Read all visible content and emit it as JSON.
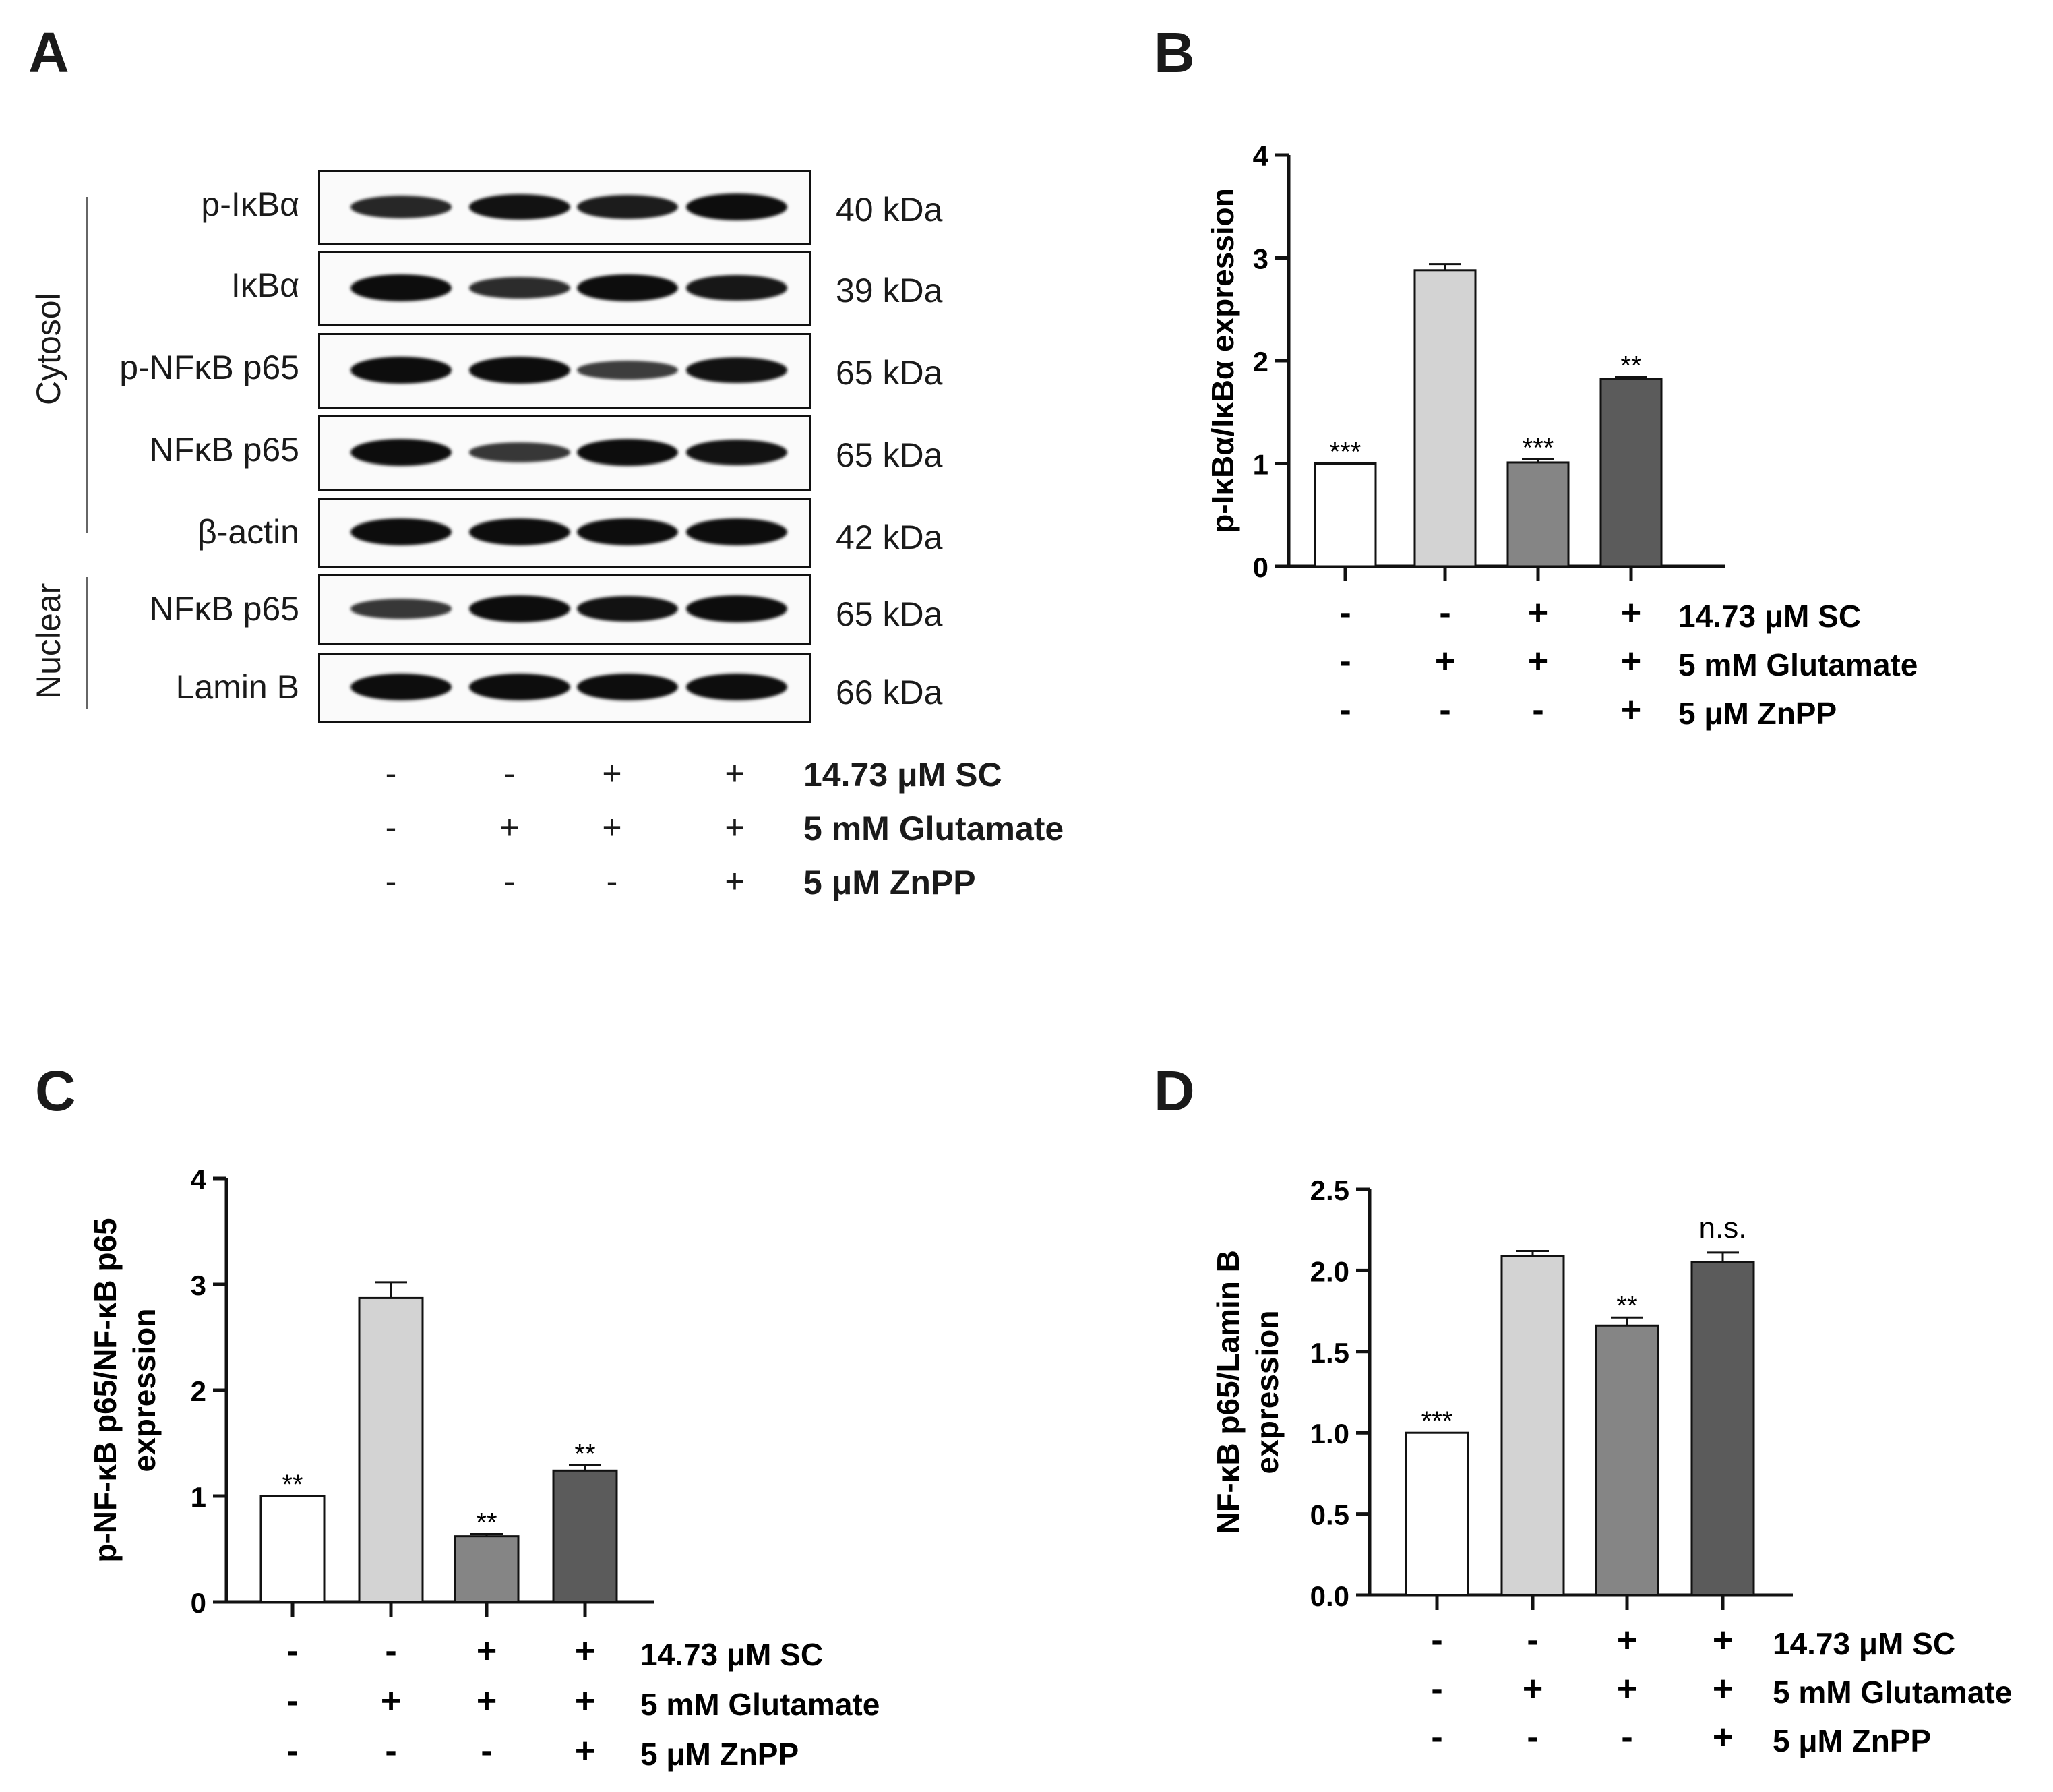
{
  "panels": {
    "A": "A",
    "B": "B",
    "C": "C",
    "D": "D"
  },
  "blot": {
    "rows": [
      {
        "label": "p-IκBα",
        "kda": "40 kDa",
        "intensities": [
          0.75,
          0.95,
          0.85,
          1.0
        ]
      },
      {
        "label": "IκBα",
        "kda": "39 kDa",
        "intensities": [
          1.0,
          0.7,
          1.0,
          0.9
        ]
      },
      {
        "label": "p-NFκB p65",
        "kda": "65 kDa",
        "intensities": [
          1.0,
          1.0,
          0.55,
          0.95
        ]
      },
      {
        "label": "NFκB p65",
        "kda": "65 kDa",
        "intensities": [
          1.0,
          0.6,
          1.0,
          0.95
        ]
      },
      {
        "label": "β-actin",
        "kda": "42 kDa",
        "intensities": [
          1.0,
          1.0,
          1.0,
          1.0
        ]
      },
      {
        "label": "NFκB p65",
        "kda": "65 kDa",
        "intensities": [
          0.6,
          1.0,
          0.95,
          1.0
        ]
      },
      {
        "label": "Lamin B",
        "kda": "66 kDa",
        "intensities": [
          1.0,
          1.0,
          1.0,
          1.0
        ]
      }
    ],
    "groups": {
      "cytosol": "Cytosol",
      "nuclear": "Nuclear"
    }
  },
  "treatments": {
    "labels": [
      "14.73 μM SC",
      "5 mM Glutamate",
      "5 μM ZnPP"
    ],
    "signs": [
      [
        "-",
        "-",
        "+",
        "+"
      ],
      [
        "-",
        "+",
        "+",
        "+"
      ],
      [
        "-",
        "-",
        "-",
        "+"
      ]
    ]
  },
  "bar_colors": [
    "#ffffff",
    "#d3d3d3",
    "#858585",
    "#5b5b5b"
  ],
  "chart_data": [
    {
      "type": "bar",
      "panel": "B",
      "ylabel": "p-IκBα/IκBα expression",
      "ylim": [
        0,
        4
      ],
      "yticks": [
        "0",
        "1",
        "2",
        "3",
        "4"
      ],
      "values": [
        1.0,
        2.88,
        1.01,
        1.82
      ],
      "errors": [
        0.0,
        0.06,
        0.03,
        0.02
      ],
      "annotations": [
        "***",
        "",
        "***",
        "**"
      ]
    },
    {
      "type": "bar",
      "panel": "C",
      "ylabel": "p-NF-κB p65/NF-κB p65 expression",
      "ylim": [
        0,
        4
      ],
      "yticks": [
        "0",
        "1",
        "2",
        "3",
        "4"
      ],
      "values": [
        1.0,
        2.87,
        0.62,
        1.24
      ],
      "errors": [
        0.0,
        0.15,
        0.02,
        0.05
      ],
      "annotations": [
        "**",
        "",
        "**",
        "**"
      ]
    },
    {
      "type": "bar",
      "panel": "D",
      "ylabel": "NF-κB p65/Lamin B expression",
      "ylim": [
        0,
        2.5
      ],
      "yticks": [
        "0.0",
        "0.5",
        "1.0",
        "1.5",
        "2.0",
        "2.5"
      ],
      "values": [
        1.0,
        2.09,
        1.66,
        2.05
      ],
      "errors": [
        0.0,
        0.03,
        0.05,
        0.06
      ],
      "annotations": [
        "***",
        "",
        "**",
        "n.s."
      ]
    }
  ]
}
